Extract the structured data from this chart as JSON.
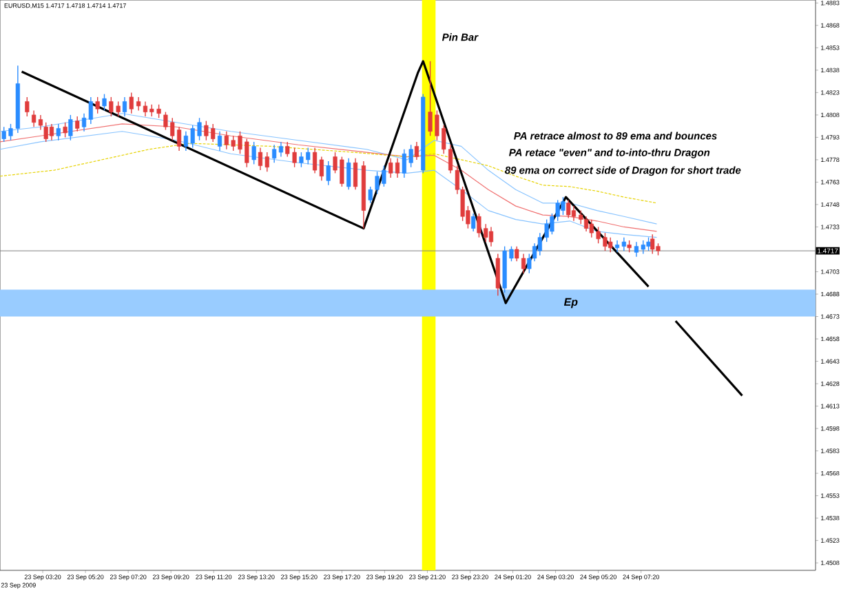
{
  "chart_data": {
    "type": "candlestick",
    "title": "EURUSD,M15  1.4717 1.4718 1.4714 1.4717",
    "xlim": [
      "2009-09-23T01:20",
      "2009-09-24T15:30"
    ],
    "ylim": [
      1.4503,
      1.4885
    ],
    "xticks": [
      {
        "value": "2009-09-23T03:20",
        "label": "23 Sep 03:20"
      },
      {
        "value": "2009-09-23T05:20",
        "label": "23 Sep 05:20"
      },
      {
        "value": "2009-09-23T07:20",
        "label": "23 Sep 07:20"
      },
      {
        "value": "2009-09-23T09:20",
        "label": "23 Sep 09:20"
      },
      {
        "value": "2009-09-23T11:20",
        "label": "23 Sep 11:20"
      },
      {
        "value": "2009-09-23T13:20",
        "label": "23 Sep 13:20"
      },
      {
        "value": "2009-09-23T15:20",
        "label": "23 Sep 15:20"
      },
      {
        "value": "2009-09-23T17:20",
        "label": "23 Sep 17:20"
      },
      {
        "value": "2009-09-23T19:20",
        "label": "23 Sep 19:20"
      },
      {
        "value": "2009-09-23T21:20",
        "label": "23 Sep 21:20"
      },
      {
        "value": "2009-09-23T23:20",
        "label": "23 Sep 23:20"
      },
      {
        "value": "2009-09-24T01:20",
        "label": "24 Sep 01:20"
      },
      {
        "value": "2009-09-24T03:20",
        "label": "24 Sep 03:20"
      },
      {
        "value": "2009-09-24T05:20",
        "label": "24 Sep 05:20"
      },
      {
        "value": "2009-09-24T07:20",
        "label": "24 Sep 07:20"
      }
    ],
    "yticks": [
      1.4508,
      1.4523,
      1.4538,
      1.4553,
      1.4568,
      1.4583,
      1.4598,
      1.4613,
      1.4628,
      1.4643,
      1.4658,
      1.4673,
      1.4688,
      1.4703,
      1.4733,
      1.4748,
      1.4763,
      1.4778,
      1.4793,
      1.4808,
      1.4823,
      1.4838,
      1.4853,
      1.4868,
      1.4883
    ],
    "grid": false,
    "ref_lines": [
      {
        "axis": "y",
        "value": 1.4717,
        "label": "1.4717",
        "color": "#808080"
      }
    ],
    "bands": [
      {
        "axis": "x",
        "from": "2009-09-23T21:05",
        "to": "2009-09-23T21:43",
        "color": "#ffff00"
      },
      {
        "axis": "y",
        "from": 1.4673,
        "to": 1.4691,
        "label": "Ep",
        "color": "#99ccff"
      }
    ],
    "annotations": [
      "Pin Bar",
      "PA retrace almost to 89 ema and bounces",
      "PA retace \"even\" and to-into-thru Dragon",
      "89 ema on correct side of Dragon for short trade",
      "23 Sep 2009"
    ],
    "series": [
      {
        "type": "line",
        "color": "#87c3ff",
        "line_style": "solid",
        "x": [
          "2009-09-23T01:20",
          "2009-09-23T03:14",
          "2009-09-23T07:03",
          "2009-09-23T09:35",
          "2009-09-23T12:08",
          "2009-09-23T15:18",
          "2009-09-23T18:29",
          "2009-09-23T20:23",
          "2009-09-23T21:39",
          "2009-09-23T22:55",
          "2009-09-24T00:11",
          "2009-09-24T01:28",
          "2009-09-24T02:44",
          "2009-09-24T04:00",
          "2009-09-24T05:16",
          "2009-09-24T06:32",
          "2009-09-24T08:04"
        ],
        "values": [
          1.4797,
          1.48,
          1.4809,
          1.4803,
          1.4797,
          1.4791,
          1.4785,
          1.4778,
          1.4791,
          1.4787,
          1.4771,
          1.4758,
          1.4749,
          1.4749,
          1.4744,
          1.474,
          1.4735
        ]
      },
      {
        "type": "line",
        "color": "#f07070",
        "line_style": "solid",
        "x": [
          "2009-09-23T01:20",
          "2009-09-23T03:14",
          "2009-09-23T07:03",
          "2009-09-23T09:35",
          "2009-09-23T12:08",
          "2009-09-23T15:18",
          "2009-09-23T18:29",
          "2009-09-23T20:23",
          "2009-09-23T21:39",
          "2009-09-23T22:55",
          "2009-09-24T00:11",
          "2009-09-24T01:28",
          "2009-09-24T02:44",
          "2009-09-24T04:00",
          "2009-09-24T05:16",
          "2009-09-24T06:32",
          "2009-09-24T08:04"
        ],
        "values": [
          1.479,
          1.4794,
          1.4802,
          1.48,
          1.4794,
          1.4788,
          1.4783,
          1.478,
          1.4781,
          1.4771,
          1.4758,
          1.4747,
          1.4741,
          1.474,
          1.4737,
          1.4733,
          1.473
        ]
      },
      {
        "type": "line",
        "color": "#87c3ff",
        "line_style": "solid",
        "x": [
          "2009-09-23T01:20",
          "2009-09-23T03:14",
          "2009-09-23T07:03",
          "2009-09-23T09:35",
          "2009-09-23T12:08",
          "2009-09-23T15:18",
          "2009-09-23T18:29",
          "2009-09-23T20:23",
          "2009-09-23T21:39",
          "2009-09-23T22:55",
          "2009-09-24T00:11",
          "2009-09-24T01:28",
          "2009-09-24T02:44",
          "2009-09-24T04:00",
          "2009-09-24T05:16",
          "2009-09-24T06:32",
          "2009-09-24T08:04"
        ],
        "values": [
          1.4785,
          1.479,
          1.4797,
          1.4791,
          1.4782,
          1.4776,
          1.4771,
          1.4769,
          1.4771,
          1.4758,
          1.4744,
          1.4738,
          1.4735,
          1.4737,
          1.473,
          1.4728,
          1.4726
        ]
      },
      {
        "type": "line",
        "color": "#e6d200",
        "line_style": "dashed",
        "x": [
          "2009-09-23T01:20",
          "2009-09-23T03:52",
          "2009-09-23T06:25",
          "2009-09-23T08:19",
          "2009-09-23T10:13",
          "2009-09-23T14:02",
          "2009-09-23T17:50",
          "2009-09-23T20:23",
          "2009-09-23T21:39",
          "2009-09-23T22:55",
          "2009-09-24T00:11",
          "2009-09-24T01:28",
          "2009-09-24T02:44",
          "2009-09-24T04:00",
          "2009-09-24T05:16",
          "2009-09-24T06:32",
          "2009-09-24T08:04"
        ],
        "values": [
          1.4767,
          1.4771,
          1.4779,
          1.4785,
          1.4789,
          1.4787,
          1.4783,
          1.478,
          1.4782,
          1.4778,
          1.4774,
          1.4767,
          1.4761,
          1.476,
          1.4757,
          1.4753,
          1.4749
        ]
      },
      {
        "type": "line",
        "color": "#000000",
        "line_style": "solid",
        "x": [
          "2009-09-23T02:21",
          "2009-09-23T18:21",
          "2009-09-23T20:53",
          "2009-09-23T21:08",
          "2009-09-24T01:00",
          "2009-09-24T03:49",
          "2009-09-24T07:41"
        ],
        "values": [
          1.4837,
          1.4732,
          1.4836,
          1.4844,
          1.4682,
          1.4753,
          1.4693
        ]
      },
      {
        "type": "line",
        "color": "#000000",
        "line_style": "solid",
        "x": [
          "2009-09-24T08:57",
          "2009-09-24T12:04"
        ],
        "values": [
          1.467,
          1.462
        ]
      }
    ],
    "colors": [
      "#2a8cff",
      "#2a8cff",
      "#2a8cff",
      "#e03c3c",
      "#e03c3c",
      "#e03c3c",
      "#e03c3c",
      "#e03c3c",
      "#2a8cff",
      "#e03c3c",
      "#2a8cff",
      "#e03c3c",
      "#2a8cff",
      "#2a8cff",
      "#e03c3c",
      "#2a8cff",
      "#e03c3c",
      "#e03c3c",
      "#2a8cff",
      "#e03c3c",
      "#e03c3c",
      "#e03c3c",
      "#e03c3c",
      "#e03c3c",
      "#e03c3c",
      "#e03c3c",
      "#e03c3c",
      "#2a8cff",
      "#2a8cff",
      "#2a8cff",
      "#e03c3c",
      "#e03c3c",
      "#2a8cff",
      "#e03c3c",
      "#e03c3c",
      "#e03c3c",
      "#e03c3c",
      "#2a8cff",
      "#e03c3c",
      "#e03c3c",
      "#2a8cff",
      "#2a8cff",
      "#e03c3c",
      "#e03c3c",
      "#2a8cff",
      "#2a8cff",
      "#e03c3c",
      "#e03c3c",
      "#2a8cff",
      "#e03c3c",
      "#e03c3c",
      "#2a8cff",
      "#e03c3c",
      "#e03c3c",
      "#2a8cff",
      "#2a8cff",
      "#2a8cff",
      "#e03c3c",
      "#e03c3c",
      "#2a8cff",
      "#2a8cff",
      "#e03c3c",
      "#2a8cff",
      "#e03c3c",
      "#e03c3c",
      "#e03c3c",
      "#e03c3c",
      "#e03c3c",
      "#e03c3c",
      "#e03c3c",
      "#2a8cff",
      "#e03c3c",
      "#e03c3c",
      "#e03c3c",
      "#e03c3c",
      "#2a8cff",
      "#2a8cff",
      "#e03c3c",
      "#e03c3c",
      "#2a8cff",
      "#2a8cff",
      "#2a8cff",
      "#2a8cff",
      "#2a8cff",
      "#2a8cff",
      "#2a8cff",
      "#e03c3c",
      "#e03c3c",
      "#e03c3c",
      "#e03c3c",
      "#e03c3c",
      "#e03c3c",
      "#e03c3c",
      "#e03c3c",
      "#2a8cff",
      "#2a8cff",
      "#e03c3c",
      "#2a8cff",
      "#2a8cff",
      "#2a8cff",
      "#e03c3c",
      "#e03c3c"
    ],
    "x": [
      "2009-09-23T01:31",
      "2009-09-23T01:50",
      "2009-09-23T02:10",
      "2009-09-23T02:36",
      "2009-09-23T02:55",
      "2009-09-23T03:14",
      "2009-09-23T03:29",
      "2009-09-23T03:45",
      "2009-09-23T04:04",
      "2009-09-23T04:23",
      "2009-09-23T04:38",
      "2009-09-23T04:57",
      "2009-09-23T05:16",
      "2009-09-23T05:35",
      "2009-09-23T05:54",
      "2009-09-23T06:13",
      "2009-09-23T06:32",
      "2009-09-23T06:52",
      "2009-09-23T07:10",
      "2009-09-23T07:29",
      "2009-09-23T07:49",
      "2009-09-23T08:08",
      "2009-09-23T08:26",
      "2009-09-23T08:46",
      "2009-09-23T09:05",
      "2009-09-23T09:24",
      "2009-09-23T09:43",
      "2009-09-23T10:02",
      "2009-09-23T10:21",
      "2009-09-23T10:40",
      "2009-09-23T10:59",
      "2009-09-23T11:18",
      "2009-09-23T11:37",
      "2009-09-23T11:56",
      "2009-09-23T12:15",
      "2009-09-23T12:34",
      "2009-09-23T12:53",
      "2009-09-23T13:13",
      "2009-09-23T13:31",
      "2009-09-23T13:50",
      "2009-09-23T14:10",
      "2009-09-23T14:29",
      "2009-09-23T14:47",
      "2009-09-23T15:07",
      "2009-09-23T15:26",
      "2009-09-23T15:45",
      "2009-09-23T16:04",
      "2009-09-23T16:23",
      "2009-09-23T16:42",
      "2009-09-23T17:01",
      "2009-09-23T17:20",
      "2009-09-23T17:39",
      "2009-09-23T17:58",
      "2009-09-23T18:21",
      "2009-09-23T18:40",
      "2009-09-23T18:59",
      "2009-09-23T19:18",
      "2009-09-23T19:37",
      "2009-09-23T19:56",
      "2009-09-23T20:15",
      "2009-09-23T20:34",
      "2009-09-23T20:50",
      "2009-09-23T21:08",
      "2009-09-23T21:28",
      "2009-09-23T21:47",
      "2009-09-23T22:06",
      "2009-09-23T22:25",
      "2009-09-23T22:44",
      "2009-09-23T22:59",
      "2009-09-23T23:14",
      "2009-09-23T23:29",
      "2009-09-23T23:45",
      "2009-09-24T00:04",
      "2009-09-24T00:19",
      "2009-09-24T00:38",
      "2009-09-24T00:57",
      "2009-09-24T01:16",
      "2009-09-24T01:31",
      "2009-09-24T01:50",
      "2009-09-24T02:06",
      "2009-09-24T02:21",
      "2009-09-24T02:36",
      "2009-09-24T02:55",
      "2009-09-24T03:10",
      "2009-09-24T03:26",
      "2009-09-24T03:41",
      "2009-09-24T03:56",
      "2009-09-24T04:11",
      "2009-09-24T04:31",
      "2009-09-24T04:46",
      "2009-09-24T05:01",
      "2009-09-24T05:20",
      "2009-09-24T05:39",
      "2009-09-24T05:54",
      "2009-09-24T06:13",
      "2009-09-24T06:32",
      "2009-09-24T06:47",
      "2009-09-24T07:07",
      "2009-09-24T07:26",
      "2009-09-24T07:41",
      "2009-09-24T07:52",
      "2009-09-24T08:08"
    ],
    "ohlc": [
      [
        1.4792,
        1.48,
        1.479,
        1.4797
      ],
      [
        1.4794,
        1.4802,
        1.4791,
        1.4799
      ],
      [
        1.4799,
        1.4841,
        1.4796,
        1.4829
      ],
      [
        1.4817,
        1.482,
        1.4807,
        1.481
      ],
      [
        1.4808,
        1.4811,
        1.48,
        1.4803
      ],
      [
        1.4805,
        1.4808,
        1.4798,
        1.4801
      ],
      [
        1.48,
        1.4803,
        1.479,
        1.4792
      ],
      [
        1.48,
        1.4802,
        1.4791,
        1.4794
      ],
      [
        1.4794,
        1.4802,
        1.4791,
        1.4799
      ],
      [
        1.48,
        1.4803,
        1.4793,
        1.4796
      ],
      [
        1.4794,
        1.4808,
        1.4791,
        1.4805
      ],
      [
        1.4804,
        1.4807,
        1.4797,
        1.4799
      ],
      [
        1.48,
        1.4809,
        1.4797,
        1.4806
      ],
      [
        1.4805,
        1.482,
        1.4802,
        1.4817
      ],
      [
        1.4817,
        1.482,
        1.4809,
        1.4812
      ],
      [
        1.4814,
        1.4822,
        1.4811,
        1.4819
      ],
      [
        1.4817,
        1.482,
        1.4807,
        1.481
      ],
      [
        1.4814,
        1.4817,
        1.4807,
        1.481
      ],
      [
        1.481,
        1.482,
        1.4807,
        1.4817
      ],
      [
        1.482,
        1.4823,
        1.4809,
        1.4812
      ],
      [
        1.4817,
        1.482,
        1.4811,
        1.4814
      ],
      [
        1.4814,
        1.4817,
        1.4807,
        1.481
      ],
      [
        1.4812,
        1.4815,
        1.4807,
        1.481
      ],
      [
        1.4812,
        1.4815,
        1.4806,
        1.4809
      ],
      [
        1.4808,
        1.481,
        1.4798,
        1.48
      ],
      [
        1.4803,
        1.4806,
        1.4791,
        1.4794
      ],
      [
        1.4798,
        1.48,
        1.4784,
        1.4787
      ],
      [
        1.4787,
        1.4797,
        1.4784,
        1.4794
      ],
      [
        1.4789,
        1.4801,
        1.4786,
        1.4799
      ],
      [
        1.4794,
        1.4806,
        1.4791,
        1.4803
      ],
      [
        1.4801,
        1.4804,
        1.4791,
        1.4794
      ],
      [
        1.4799,
        1.4802,
        1.479,
        1.4792
      ],
      [
        1.4787,
        1.4797,
        1.4784,
        1.4794
      ],
      [
        1.4794,
        1.4797,
        1.4785,
        1.4788
      ],
      [
        1.4791,
        1.4794,
        1.4784,
        1.4787
      ],
      [
        1.4794,
        1.4797,
        1.4782,
        1.4785
      ],
      [
        1.479,
        1.4792,
        1.4773,
        1.4776
      ],
      [
        1.4778,
        1.479,
        1.4775,
        1.4787
      ],
      [
        1.4783,
        1.4786,
        1.4771,
        1.4774
      ],
      [
        1.478,
        1.4783,
        1.477,
        1.4773
      ],
      [
        1.4779,
        1.4788,
        1.4776,
        1.4785
      ],
      [
        1.4783,
        1.479,
        1.478,
        1.4787
      ],
      [
        1.4787,
        1.479,
        1.478,
        1.4782
      ],
      [
        1.4783,
        1.4786,
        1.4773,
        1.4776
      ],
      [
        1.4776,
        1.4783,
        1.4773,
        1.478
      ],
      [
        1.4778,
        1.4786,
        1.4775,
        1.4783
      ],
      [
        1.4783,
        1.4786,
        1.4769,
        1.4771
      ],
      [
        1.4778,
        1.478,
        1.4764,
        1.4767
      ],
      [
        1.4764,
        1.4777,
        1.4761,
        1.4774
      ],
      [
        1.478,
        1.4783,
        1.4769,
        1.4771
      ],
      [
        1.4778,
        1.478,
        1.476,
        1.4762
      ],
      [
        1.476,
        1.4779,
        1.4758,
        1.4776
      ],
      [
        1.4776,
        1.4779,
        1.4758,
        1.476
      ],
      [
        1.4774,
        1.4777,
        1.4732,
        1.4744
      ],
      [
        1.4751,
        1.476,
        1.4749,
        1.4758
      ],
      [
        1.4758,
        1.477,
        1.4755,
        1.4767
      ],
      [
        1.4762,
        1.4774,
        1.476,
        1.4771
      ],
      [
        1.4776,
        1.4779,
        1.4766,
        1.4769
      ],
      [
        1.4776,
        1.4779,
        1.4766,
        1.4769
      ],
      [
        1.4769,
        1.4785,
        1.4766,
        1.4782
      ],
      [
        1.4776,
        1.4788,
        1.4773,
        1.4785
      ],
      [
        1.4787,
        1.479,
        1.4778,
        1.478
      ],
      [
        1.4771,
        1.4822,
        1.4769,
        1.482
      ],
      [
        1.481,
        1.4844,
        1.4794,
        1.4797
      ],
      [
        1.4808,
        1.4811,
        1.4791,
        1.4794
      ],
      [
        1.4799,
        1.4801,
        1.4782,
        1.4785
      ],
      [
        1.4785,
        1.4788,
        1.4769,
        1.4771
      ],
      [
        1.4771,
        1.4774,
        1.4755,
        1.4758
      ],
      [
        1.4758,
        1.476,
        1.4737,
        1.474
      ],
      [
        1.4744,
        1.4747,
        1.4732,
        1.4735
      ],
      [
        1.4732,
        1.4742,
        1.473,
        1.474
      ],
      [
        1.474,
        1.4742,
        1.4726,
        1.4729
      ],
      [
        1.4732,
        1.4735,
        1.4723,
        1.4726
      ],
      [
        1.473,
        1.4733,
        1.472,
        1.4723
      ],
      [
        1.4712,
        1.4715,
        1.4687,
        1.4692
      ],
      [
        1.4692,
        1.472,
        1.4689,
        1.4717
      ],
      [
        1.4712,
        1.472,
        1.471,
        1.4718
      ],
      [
        1.4718,
        1.472,
        1.471,
        1.4712
      ],
      [
        1.4712,
        1.4715,
        1.4702,
        1.4705
      ],
      [
        1.4705,
        1.4715,
        1.4702,
        1.4712
      ],
      [
        1.4712,
        1.4722,
        1.471,
        1.472
      ],
      [
        1.4717,
        1.4729,
        1.4714,
        1.4726
      ],
      [
        1.4726,
        1.4738,
        1.4723,
        1.4735
      ],
      [
        1.473,
        1.4742,
        1.4728,
        1.474
      ],
      [
        1.474,
        1.4751,
        1.4737,
        1.4749
      ],
      [
        1.4744,
        1.4753,
        1.4741,
        1.475
      ],
      [
        1.4749,
        1.4751,
        1.4739,
        1.4741
      ],
      [
        1.4744,
        1.4747,
        1.4737,
        1.474
      ],
      [
        1.4741,
        1.4744,
        1.4735,
        1.4738
      ],
      [
        1.4738,
        1.474,
        1.473,
        1.4732
      ],
      [
        1.4735,
        1.4738,
        1.4726,
        1.4729
      ],
      [
        1.473,
        1.4733,
        1.4722,
        1.4725
      ],
      [
        1.4726,
        1.4729,
        1.4717,
        1.472
      ],
      [
        1.4723,
        1.4726,
        1.4716,
        1.4719
      ],
      [
        1.4719,
        1.4724,
        1.4716,
        1.4721
      ],
      [
        1.472,
        1.4726,
        1.4717,
        1.4723
      ],
      [
        1.4721,
        1.4724,
        1.4716,
        1.4719
      ],
      [
        1.4716,
        1.4723,
        1.4713,
        1.472
      ],
      [
        1.4718,
        1.4724,
        1.4715,
        1.4721
      ],
      [
        1.472,
        1.4726,
        1.4717,
        1.4723
      ],
      [
        1.4725,
        1.4728,
        1.4715,
        1.4718
      ],
      [
        1.472,
        1.4722,
        1.4714,
        1.4717
      ]
    ]
  }
}
